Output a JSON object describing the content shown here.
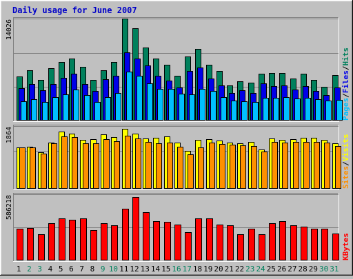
{
  "title": "Daily usage for June 2007",
  "colors": {
    "background": "#c0c0c0",
    "plot_bg": "#c0c0c0",
    "title": "#0000c8",
    "grid": "#808080",
    "hits": "#00805c",
    "files": "#0000e8",
    "pages": "#00c0ff",
    "visits": "#ffff00",
    "sites": "#ff9000",
    "kbytes": "#ff0000",
    "weekday": "#000000",
    "weekend": "#00805c"
  },
  "chart_data": [
    {
      "type": "bar",
      "panel": "hits-files-pages",
      "ymax_label": "14026",
      "ylim": [
        0,
        14026
      ],
      "legend": [
        {
          "label": "Pages",
          "color_key": "pages"
        },
        {
          "label": "/",
          "color_key": "divider"
        },
        {
          "label": "Files",
          "color_key": "files"
        },
        {
          "label": "/",
          "color_key": "divider"
        },
        {
          "label": "Hits",
          "color_key": "hits"
        }
      ],
      "categories": [
        "1",
        "2",
        "3",
        "4",
        "5",
        "6",
        "7",
        "8",
        "9",
        "10",
        "11",
        "12",
        "13",
        "14",
        "15",
        "16",
        "17",
        "18",
        "19",
        "20",
        "21",
        "22",
        "23",
        "24",
        "25",
        "26",
        "27",
        "28",
        "29",
        "30",
        "31"
      ],
      "series": [
        {
          "name": "Hits",
          "values": [
            6110,
            6950,
            5600,
            7200,
            8040,
            8500,
            7400,
            5600,
            6950,
            8040,
            14026,
            12670,
            10000,
            8500,
            7700,
            6200,
            8840,
            9860,
            7700,
            6800,
            4800,
            5400,
            5200,
            6450,
            6540,
            6540,
            5800,
            6450,
            5600,
            4680,
            6280
          ]
        },
        {
          "name": "Files",
          "values": [
            4500,
            5000,
            4150,
            5000,
            5850,
            6450,
            5000,
            4060,
            5700,
            6200,
            9350,
            8500,
            7550,
            6200,
            5500,
            4590,
            6800,
            7300,
            5800,
            4880,
            3750,
            4150,
            3750,
            5100,
            4750,
            4880,
            4240,
            4750,
            4060,
            3480,
            4590
          ]
        },
        {
          "name": "Pages",
          "values": [
            2650,
            2900,
            2520,
            3220,
            3600,
            4240,
            3480,
            2590,
            3180,
            3780,
            6710,
            6200,
            5160,
            4320,
            4330,
            3650,
            3560,
            4330,
            4060,
            3260,
            2750,
            2640,
            2520,
            3100,
            3140,
            3220,
            3050,
            3100,
            2980,
            2730,
            2880
          ]
        }
      ]
    },
    {
      "type": "bar",
      "panel": "sites-visits",
      "ymax_label": "1864",
      "ylim": [
        0,
        1864
      ],
      "legend": [
        {
          "label": "Sites",
          "color_key": "sites"
        },
        {
          "label": "/",
          "color_key": "divider"
        },
        {
          "label": "Visits",
          "color_key": "visits"
        }
      ],
      "categories": [
        "1",
        "2",
        "3",
        "4",
        "5",
        "6",
        "7",
        "8",
        "9",
        "10",
        "11",
        "12",
        "13",
        "14",
        "15",
        "16",
        "17",
        "18",
        "19",
        "20",
        "21",
        "22",
        "23",
        "24",
        "25",
        "26",
        "27",
        "28",
        "29",
        "30",
        "31"
      ],
      "series": [
        {
          "name": "Visits",
          "values": [
            1230,
            1240,
            1085,
            1380,
            1700,
            1640,
            1455,
            1470,
            1610,
            1540,
            1780,
            1640,
            1505,
            1520,
            1550,
            1380,
            1120,
            1455,
            1485,
            1440,
            1380,
            1345,
            1400,
            1175,
            1490,
            1455,
            1480,
            1520,
            1515,
            1460,
            1360
          ]
        },
        {
          "name": "Sites",
          "values": [
            1230,
            1220,
            1050,
            1360,
            1560,
            1540,
            1345,
            1345,
            1480,
            1420,
            1580,
            1500,
            1395,
            1360,
            1370,
            1250,
            1020,
            1230,
            1380,
            1340,
            1320,
            1290,
            1260,
            1110,
            1400,
            1380,
            1390,
            1400,
            1390,
            1380,
            1260
          ]
        }
      ]
    },
    {
      "type": "bar",
      "panel": "kbytes",
      "ymax_label": "586218",
      "ylim": [
        0,
        586218
      ],
      "legend": [
        {
          "label": "KBytes",
          "color_key": "kbytes"
        }
      ],
      "categories": [
        "1",
        "2",
        "3",
        "4",
        "5",
        "6",
        "7",
        "8",
        "9",
        "10",
        "11",
        "12",
        "13",
        "14",
        "15",
        "16",
        "17",
        "18",
        "19",
        "20",
        "21",
        "22",
        "23",
        "24",
        "25",
        "26",
        "27",
        "28",
        "29",
        "30",
        "31"
      ],
      "series": [
        {
          "name": "KBytes",
          "values": [
            280000,
            290000,
            230000,
            330000,
            370000,
            360000,
            370000,
            270000,
            330000,
            310000,
            460000,
            560000,
            430000,
            350000,
            340000,
            320000,
            250000,
            370000,
            370000,
            320000,
            310000,
            230000,
            280000,
            230000,
            330000,
            350000,
            310000,
            300000,
            280000,
            280000,
            240000
          ]
        }
      ]
    }
  ],
  "x_axis": {
    "days": [
      "1",
      "2",
      "3",
      "4",
      "5",
      "6",
      "7",
      "8",
      "9",
      "10",
      "11",
      "12",
      "13",
      "14",
      "15",
      "16",
      "17",
      "18",
      "19",
      "20",
      "21",
      "22",
      "23",
      "24",
      "25",
      "26",
      "27",
      "28",
      "29",
      "30",
      "31"
    ],
    "weekend_days": [
      "2",
      "3",
      "9",
      "10",
      "16",
      "17",
      "23",
      "24",
      "30",
      "31"
    ]
  }
}
